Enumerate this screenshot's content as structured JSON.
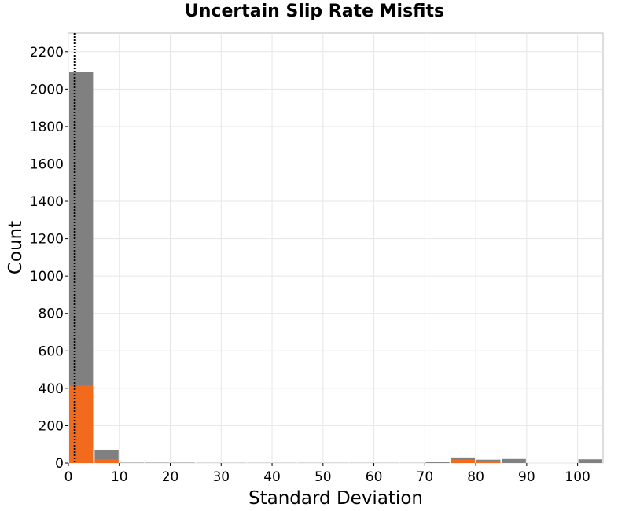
{
  "chart_data": {
    "type": "bar",
    "title": "Uncertain Slip Rate Misfits",
    "xlabel": "Standard Deviation",
    "ylabel": "Count",
    "xlim": [
      0,
      105
    ],
    "ylim": [
      0,
      2300
    ],
    "x_ticks": [
      0,
      10,
      20,
      30,
      40,
      50,
      60,
      70,
      80,
      90,
      100
    ],
    "y_ticks": [
      0,
      200,
      400,
      600,
      800,
      1000,
      1200,
      1400,
      1600,
      1800,
      2000,
      2200
    ],
    "grid": true,
    "bin_width": 5,
    "series": [
      {
        "color": "#808080",
        "bins": [
          {
            "x0": 0,
            "x1": 5,
            "value": 2090
          },
          {
            "x0": 5,
            "x1": 10,
            "value": 70
          },
          {
            "x0": 10,
            "x1": 15,
            "value": 2
          },
          {
            "x0": 15,
            "x1": 20,
            "value": 2
          },
          {
            "x0": 20,
            "x1": 25,
            "value": 2
          },
          {
            "x0": 25,
            "x1": 30,
            "value": 1
          },
          {
            "x0": 30,
            "x1": 35,
            "value": 1
          },
          {
            "x0": 35,
            "x1": 40,
            "value": 1
          },
          {
            "x0": 40,
            "x1": 45,
            "value": 1
          },
          {
            "x0": 45,
            "x1": 50,
            "value": 1
          },
          {
            "x0": 50,
            "x1": 55,
            "value": 1
          },
          {
            "x0": 55,
            "x1": 60,
            "value": 1
          },
          {
            "x0": 60,
            "x1": 65,
            "value": 1
          },
          {
            "x0": 65,
            "x1": 70,
            "value": 1
          },
          {
            "x0": 70,
            "x1": 75,
            "value": 4
          },
          {
            "x0": 75,
            "x1": 80,
            "value": 30
          },
          {
            "x0": 80,
            "x1": 85,
            "value": 18
          },
          {
            "x0": 85,
            "x1": 90,
            "value": 22
          },
          {
            "x0": 100,
            "x1": 105,
            "value": 20
          }
        ]
      },
      {
        "color": "#f26b1d",
        "bins": [
          {
            "x0": 0,
            "x1": 5,
            "value": 415
          },
          {
            "x0": 5,
            "x1": 10,
            "value": 20
          },
          {
            "x0": 75,
            "x1": 80,
            "value": 18
          },
          {
            "x0": 80,
            "x1": 85,
            "value": 8
          }
        ]
      }
    ],
    "reference_lines": [
      {
        "x": 1.2,
        "color": "#000000",
        "style": "dotted"
      },
      {
        "x": 1.4,
        "color": "#8b4513",
        "style": "dotted"
      }
    ]
  }
}
